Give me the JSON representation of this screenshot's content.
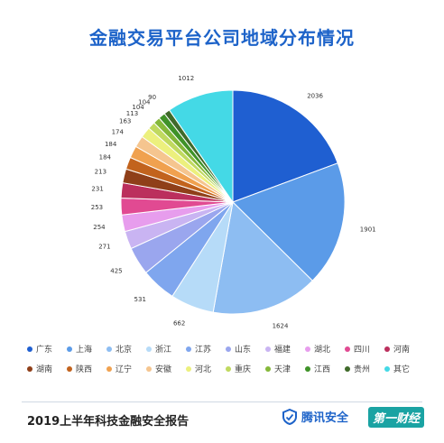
{
  "chart_data": {
    "type": "pie",
    "title": "金融交易平台公司地域分布情况",
    "categories": [
      "广东",
      "上海",
      "北京",
      "浙江",
      "江苏",
      "山东",
      "福建",
      "湖北",
      "四川",
      "河南",
      "湖南",
      "陕西",
      "辽宁",
      "安徽",
      "河北",
      "重庆",
      "天津",
      "江西",
      "贵州",
      "其它"
    ],
    "values": [
      2036,
      1901,
      1624,
      662,
      531,
      425,
      271,
      254,
      253,
      231,
      213,
      184,
      184,
      174,
      163,
      113,
      104,
      104,
      90,
      1012
    ],
    "colors": [
      "#1f5fd1",
      "#5b9be8",
      "#8dbdf2",
      "#b6dbf8",
      "#7fa6ee",
      "#9aa6ee",
      "#c9b4f2",
      "#e79ded",
      "#e14a92",
      "#bb2f5d",
      "#8f3f19",
      "#c2631d",
      "#f0a14f",
      "#f5c58f",
      "#ecf07d",
      "#c0d95f",
      "#85b83a",
      "#3f9228",
      "#3f6a2a",
      "#44d9e6"
    ],
    "legend_position": "bottom"
  },
  "footer": {
    "report_title": "2019上半年科技金融安全报告",
    "brand1": "腾讯安全",
    "brand2": "第一财经"
  }
}
